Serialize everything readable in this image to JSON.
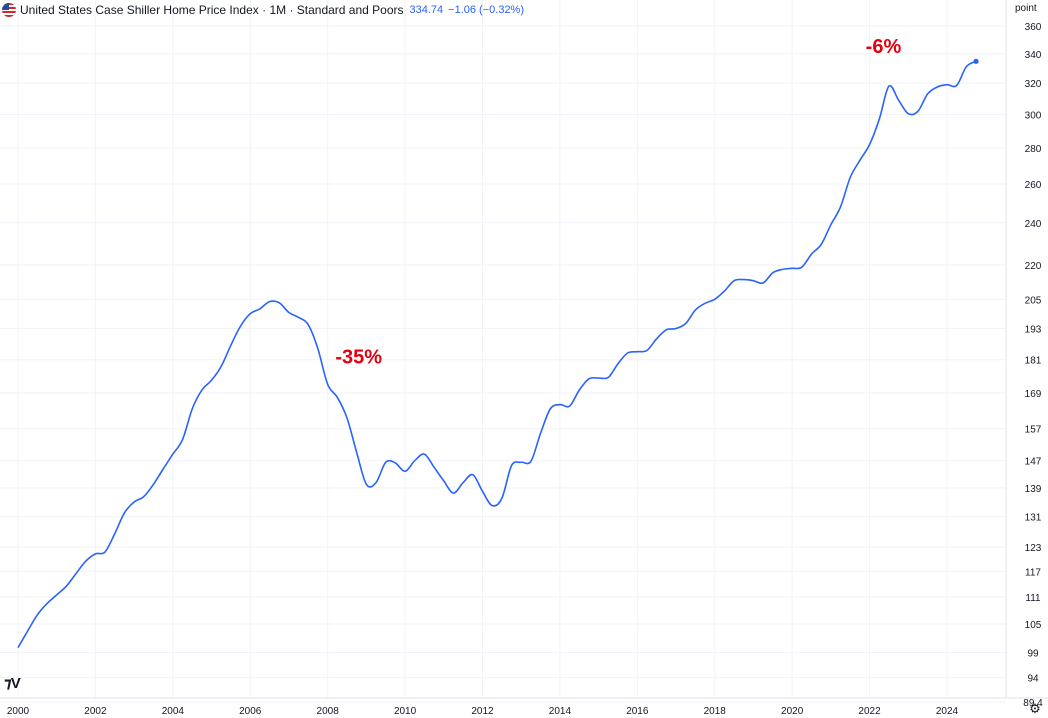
{
  "header": {
    "title": "United States Case Shiller Home Price Index · 1M · Standard and Poors",
    "last_value": "334.74",
    "change": "−1.06 (−0.32%)"
  },
  "icons": {
    "flag": "us-flag-icon",
    "logo": "tradingview-logo-icon",
    "settings": "settings-gear-icon"
  },
  "colors": {
    "line": "#2962ff",
    "annotation": "#e4000f",
    "grid": "#f0f3fa"
  },
  "chart_data": {
    "type": "line",
    "y_scale": "log",
    "ylabel": "point",
    "x_range": [
      2000.0,
      2024.75
    ],
    "ylim": [
      89.4,
      366
    ],
    "x_ticks": [
      2000,
      2002,
      2004,
      2006,
      2008,
      2010,
      2012,
      2014,
      2016,
      2018,
      2020,
      2022,
      2024
    ],
    "y_ticks": [
      89.4,
      94,
      99,
      105,
      111,
      117,
      123,
      131,
      139,
      147,
      157,
      169,
      181,
      193,
      205,
      220,
      240,
      260,
      280,
      300,
      320,
      340,
      360
    ],
    "grid": true,
    "series": [
      {
        "name": "",
        "last_value": 334.74,
        "points": [
          [
            2000.0,
            100.0
          ],
          [
            2000.25,
            103.5
          ],
          [
            2000.5,
            107.0
          ],
          [
            2000.75,
            109.5
          ],
          [
            2001.0,
            111.5
          ],
          [
            2001.25,
            113.5
          ],
          [
            2001.5,
            116.5
          ],
          [
            2001.75,
            119.5
          ],
          [
            2002.0,
            121.3
          ],
          [
            2002.25,
            121.8
          ],
          [
            2002.5,
            126.5
          ],
          [
            2002.75,
            132.0
          ],
          [
            2003.0,
            135.0
          ],
          [
            2003.25,
            136.5
          ],
          [
            2003.5,
            140.0
          ],
          [
            2003.75,
            144.5
          ],
          [
            2004.0,
            149.0
          ],
          [
            2004.25,
            153.5
          ],
          [
            2004.5,
            163.5
          ],
          [
            2004.75,
            170.0
          ],
          [
            2005.0,
            173.5
          ],
          [
            2005.25,
            178.5
          ],
          [
            2005.5,
            186.5
          ],
          [
            2005.75,
            194.0
          ],
          [
            2006.0,
            199.0
          ],
          [
            2006.25,
            201.0
          ],
          [
            2006.5,
            204.0
          ],
          [
            2006.75,
            203.5
          ],
          [
            2007.0,
            199.5
          ],
          [
            2007.25,
            197.5
          ],
          [
            2007.5,
            194.5
          ],
          [
            2007.75,
            185.0
          ],
          [
            2008.0,
            172.0
          ],
          [
            2008.25,
            167.5
          ],
          [
            2008.5,
            160.5
          ],
          [
            2008.75,
            149.5
          ],
          [
            2009.0,
            140.0
          ],
          [
            2009.25,
            140.5
          ],
          [
            2009.5,
            146.5
          ],
          [
            2009.75,
            146.3
          ],
          [
            2010.0,
            143.8
          ],
          [
            2010.25,
            147.0
          ],
          [
            2010.5,
            149.0
          ],
          [
            2010.75,
            145.0
          ],
          [
            2011.0,
            141.0
          ],
          [
            2011.25,
            137.5
          ],
          [
            2011.5,
            140.5
          ],
          [
            2011.75,
            142.8
          ],
          [
            2012.0,
            138.0
          ],
          [
            2012.25,
            134.0
          ],
          [
            2012.5,
            136.0
          ],
          [
            2012.75,
            145.5
          ],
          [
            2013.0,
            146.5
          ],
          [
            2013.25,
            146.8
          ],
          [
            2013.5,
            155.5
          ],
          [
            2013.75,
            163.5
          ],
          [
            2014.0,
            165.0
          ],
          [
            2014.25,
            164.5
          ],
          [
            2014.5,
            170.0
          ],
          [
            2014.75,
            174.0
          ],
          [
            2015.0,
            174.3
          ],
          [
            2015.25,
            174.5
          ],
          [
            2015.5,
            179.5
          ],
          [
            2015.75,
            183.5
          ],
          [
            2016.0,
            184.0
          ],
          [
            2016.25,
            184.5
          ],
          [
            2016.5,
            189.0
          ],
          [
            2016.75,
            192.5
          ],
          [
            2017.0,
            193.0
          ],
          [
            2017.25,
            195.0
          ],
          [
            2017.5,
            200.5
          ],
          [
            2017.75,
            203.3
          ],
          [
            2018.0,
            205.0
          ],
          [
            2018.25,
            208.5
          ],
          [
            2018.5,
            213.0
          ],
          [
            2018.75,
            213.5
          ],
          [
            2019.0,
            213.0
          ],
          [
            2019.25,
            212.0
          ],
          [
            2019.5,
            216.5
          ],
          [
            2019.75,
            218.0
          ],
          [
            2020.0,
            218.5
          ],
          [
            2020.25,
            219.0
          ],
          [
            2020.5,
            225.0
          ],
          [
            2020.75,
            229.5
          ],
          [
            2021.0,
            239.0
          ],
          [
            2021.25,
            248.0
          ],
          [
            2021.5,
            263.5
          ],
          [
            2021.75,
            273.0
          ],
          [
            2022.0,
            282.0
          ],
          [
            2022.25,
            297.0
          ],
          [
            2022.5,
            318.0
          ],
          [
            2022.75,
            309.0
          ],
          [
            2023.0,
            300.5
          ],
          [
            2023.25,
            302.0
          ],
          [
            2023.5,
            313.0
          ],
          [
            2023.75,
            317.5
          ],
          [
            2024.0,
            319.0
          ],
          [
            2024.25,
            318.5
          ],
          [
            2024.5,
            331.0
          ],
          [
            2024.75,
            334.74
          ]
        ]
      }
    ],
    "annotations": [
      {
        "text": "-35%",
        "x": 2008.2,
        "y": 179.5
      },
      {
        "text": "-6%",
        "x": 2021.9,
        "y": 340.5
      }
    ]
  }
}
